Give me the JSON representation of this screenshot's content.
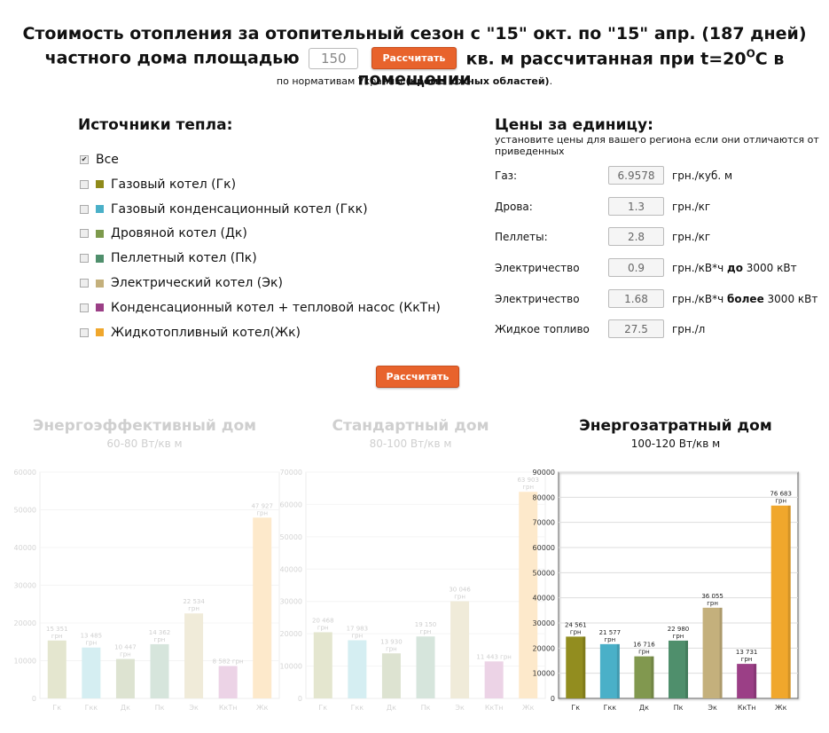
{
  "header": {
    "line1": "Стоимость отопления за отопительный сезон с \"15\" окт. по \"15\" апр. (187 дней)",
    "line2_pre": "частного дома площадью",
    "area_value": "150",
    "calc_label": "Рассчитать",
    "line2_post_a": "кв. м рассчитанная при t=20",
    "line2_sup": "O",
    "line2_post_b": "C в помещении",
    "note_pre": "по нормативам Украины",
    "note_bold": "(кроме южных областей)",
    "note_end": "."
  },
  "sources": {
    "title": "Источники тепла:",
    "items": [
      {
        "label": "Все",
        "checked": true,
        "color": ""
      },
      {
        "label": "Газовый котел (Гк)",
        "checked": false,
        "color": "#8f8a1a"
      },
      {
        "label": "Газовый конденсационный котел (Гкк)",
        "checked": false,
        "color": "#4ab0c8"
      },
      {
        "label": "Дровяной котел (Дк)",
        "checked": false,
        "color": "#7d9a4c"
      },
      {
        "label": "Пеллетный котел (Пк)",
        "checked": false,
        "color": "#4f8f6c"
      },
      {
        "label": "Электрический котел (Эк)",
        "checked": false,
        "color": "#c4b07c"
      },
      {
        "label": "Конденсационный котел + тепловой насос (КкТн)",
        "checked": false,
        "color": "#9b3f86"
      },
      {
        "label": "Жидкотопливный котел(Жк)",
        "checked": false,
        "color": "#f0a72c"
      }
    ]
  },
  "prices": {
    "title": "Цены за единицу:",
    "subtitle": "установите цены для вашего региона если они отличаются от приведенных",
    "rows": [
      {
        "label": "Газ:",
        "value": "6.9578",
        "unit_pre": "грн./куб. м",
        "unit_bold": "",
        "unit_post": ""
      },
      {
        "label": "Дрова:",
        "value": "1.3",
        "unit_pre": "грн./кг",
        "unit_bold": "",
        "unit_post": ""
      },
      {
        "label": "Пеллеты:",
        "value": "2.8",
        "unit_pre": "грн./кг",
        "unit_bold": "",
        "unit_post": ""
      },
      {
        "label": "Электричество",
        "value": "0.9",
        "unit_pre": "грн./кВ*ч ",
        "unit_bold": "до",
        "unit_post": " 3000 кВт"
      },
      {
        "label": "Электричество",
        "value": "1.68",
        "unit_pre": "грн./кВ*ч ",
        "unit_bold": "более",
        "unit_post": " 3000 кВт"
      },
      {
        "label": "Жидкое топливо",
        "value": "27.5",
        "unit_pre": "грн./л",
        "unit_bold": "",
        "unit_post": ""
      }
    ]
  },
  "calc_button": "Рассчитать",
  "colors": {
    "faded": [
      "#e4e6cf",
      "#d5eef2",
      "#dde3d1",
      "#d6e5dc",
      "#f0ebd9",
      "#ecd3e6",
      "#fde9cb"
    ],
    "full": [
      "#928d1f",
      "#4ab0c8",
      "#81984f",
      "#4f8f6c",
      "#c4b07c",
      "#9b3f86",
      "#f0a72c"
    ]
  },
  "chart_data": [
    {
      "type": "bar",
      "title": "Энергоэффективный дом",
      "subtitle": "60-80 Вт/кв м",
      "categories": [
        "Гк",
        "Гкк",
        "Дк",
        "Пк",
        "Эк",
        "КкТн",
        "Жк"
      ],
      "values": [
        15351,
        13485,
        10447,
        14362,
        22534,
        8582,
        47927
      ],
      "value_labels": [
        "15 351",
        "13 485",
        "10 447",
        "14 362",
        "22 534",
        "8 582",
        "47 927"
      ],
      "unit": "грн",
      "ylim": [
        0,
        60000
      ],
      "yticks": [
        0,
        10000,
        20000,
        30000,
        40000,
        50000,
        60000
      ],
      "highlighted": false
    },
    {
      "type": "bar",
      "title": "Стандартный дом",
      "subtitle": "80-100 Вт/кв м",
      "categories": [
        "Гк",
        "Гкк",
        "Дк",
        "Пк",
        "Эк",
        "КкТн",
        "Жк"
      ],
      "values": [
        20468,
        17983,
        13930,
        19150,
        30046,
        11443,
        63903
      ],
      "value_labels": [
        "20 468",
        "17 983",
        "13 930",
        "19 150",
        "30 046",
        "11 443",
        "63 903"
      ],
      "unit": "грн",
      "ylim": [
        0,
        70000
      ],
      "yticks": [
        0,
        10000,
        20000,
        30000,
        40000,
        50000,
        60000,
        70000
      ],
      "highlighted": false
    },
    {
      "type": "bar",
      "title": "Энергозатратный дом",
      "subtitle": "100-120 Вт/кв м",
      "categories": [
        "Гк",
        "Гкк",
        "Дк",
        "Пк",
        "Эк",
        "КкТн",
        "Жк"
      ],
      "values": [
        24561,
        21577,
        16716,
        22980,
        36055,
        13731,
        76683
      ],
      "value_labels": [
        "24 561",
        "21 577",
        "16 716",
        "22 980",
        "36 055",
        "13 731",
        "76 683"
      ],
      "unit": "грн",
      "ylim": [
        0,
        90000
      ],
      "yticks": [
        0,
        10000,
        20000,
        30000,
        40000,
        50000,
        60000,
        70000,
        80000,
        90000
      ],
      "highlighted": true
    }
  ]
}
